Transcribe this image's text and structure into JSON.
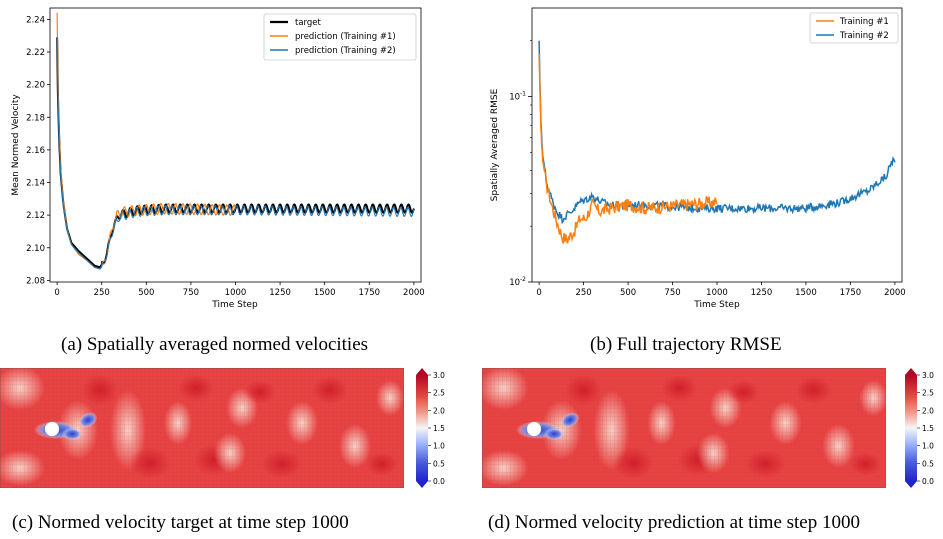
{
  "captions": {
    "a": "(a) Spatially averaged normed velocities",
    "b": "(b) Full trajectory RMSE",
    "c": "(c) Normed velocity target at time step 1000",
    "d": "(d) Normed velocity prediction at time step 1000"
  },
  "chart_data": [
    {
      "type": "line",
      "xlabel": "Time Step",
      "ylabel": "Mean Normed Velocity",
      "xlim": [
        -40,
        2040
      ],
      "ylim": [
        2.079,
        2.247
      ],
      "xticks": [
        "0",
        "250",
        "500",
        "750",
        "1000",
        "1250",
        "1500",
        "1750",
        "2000"
      ],
      "yticks": [
        "2.08",
        "2.10",
        "2.12",
        "2.14",
        "2.16",
        "2.18",
        "2.20",
        "2.22",
        "2.24"
      ],
      "legend_position": "top-right",
      "series": [
        {
          "name": "target",
          "color": "#000000",
          "x_range": [
            0,
            2000
          ],
          "anchors": [
            [
              0,
              2.229
            ],
            [
              5,
              2.19
            ],
            [
              12,
              2.165
            ],
            [
              20,
              2.145
            ],
            [
              35,
              2.127
            ],
            [
              55,
              2.112
            ],
            [
              80,
              2.103
            ],
            [
              120,
              2.098
            ],
            [
              170,
              2.093
            ],
            [
              210,
              2.089
            ],
            [
              240,
              2.088
            ],
            [
              260,
              2.091
            ],
            [
              280,
              2.097
            ],
            [
              300,
              2.107
            ],
            [
              320,
              2.114
            ],
            [
              345,
              2.12
            ],
            [
              380,
              2.121
            ],
            [
              450,
              2.123
            ],
            [
              600,
              2.124
            ],
            [
              1000,
              2.124
            ],
            [
              2000,
              2.124
            ]
          ],
          "osc_amp": 0.0025,
          "osc_period": 40
        },
        {
          "name": "prediction (Training #1)",
          "color": "#ff7f0e",
          "x_range": [
            0,
            1000
          ],
          "anchors": [
            [
              0,
              2.244
            ],
            [
              5,
              2.2
            ],
            [
              12,
              2.17
            ],
            [
              20,
              2.148
            ],
            [
              35,
              2.128
            ],
            [
              55,
              2.112
            ],
            [
              80,
              2.102
            ],
            [
              120,
              2.096
            ],
            [
              170,
              2.092
            ],
            [
              210,
              2.088
            ],
            [
              240,
              2.087
            ],
            [
              260,
              2.09
            ],
            [
              280,
              2.097
            ],
            [
              300,
              2.108
            ],
            [
              320,
              2.116
            ],
            [
              345,
              2.121
            ],
            [
              380,
              2.122
            ],
            [
              450,
              2.123
            ],
            [
              600,
              2.124
            ],
            [
              1000,
              2.123
            ]
          ],
          "osc_amp": 0.0032,
          "osc_period": 41
        },
        {
          "name": "prediction (Training #2)",
          "color": "#1f77b4",
          "x_range": [
            0,
            2000
          ],
          "anchors": [
            [
              0,
              2.229
            ],
            [
              5,
              2.19
            ],
            [
              12,
              2.164
            ],
            [
              20,
              2.144
            ],
            [
              35,
              2.126
            ],
            [
              55,
              2.111
            ],
            [
              80,
              2.102
            ],
            [
              120,
              2.097
            ],
            [
              170,
              2.092
            ],
            [
              210,
              2.088
            ],
            [
              240,
              2.087
            ],
            [
              260,
              2.09
            ],
            [
              280,
              2.096
            ],
            [
              300,
              2.106
            ],
            [
              320,
              2.113
            ],
            [
              345,
              2.119
            ],
            [
              380,
              2.12
            ],
            [
              450,
              2.122
            ],
            [
              600,
              2.123
            ],
            [
              1000,
              2.123
            ],
            [
              2000,
              2.122
            ]
          ],
          "osc_amp": 0.0028,
          "osc_period": 40
        }
      ]
    },
    {
      "type": "line",
      "xlabel": "Time Step",
      "ylabel": "Spatially Averaged RMSE",
      "yscale": "log",
      "xlim": [
        -40,
        2040
      ],
      "ylim": [
        0.01,
        0.3
      ],
      "xticks": [
        "0",
        "250",
        "500",
        "750",
        "1000",
        "1250",
        "1500",
        "1750",
        "2000"
      ],
      "yticks": [
        "10^-2",
        "10^-1"
      ],
      "legend_position": "top-right",
      "series": [
        {
          "name": "Training #1",
          "color": "#ff7f0e",
          "x_range": [
            0,
            1000
          ],
          "anchors": [
            [
              0,
              0.17
            ],
            [
              3,
              0.13
            ],
            [
              7,
              0.08
            ],
            [
              12,
              0.06
            ],
            [
              20,
              0.045
            ],
            [
              40,
              0.034
            ],
            [
              70,
              0.026
            ],
            [
              100,
              0.021
            ],
            [
              130,
              0.0175
            ],
            [
              160,
              0.017
            ],
            [
              200,
              0.019
            ],
            [
              230,
              0.022
            ],
            [
              260,
              0.022
            ],
            [
              300,
              0.026
            ],
            [
              340,
              0.024
            ],
            [
              400,
              0.025
            ],
            [
              500,
              0.026
            ],
            [
              600,
              0.025
            ],
            [
              800,
              0.026
            ],
            [
              1000,
              0.027
            ]
          ],
          "noise": 0.08
        },
        {
          "name": "Training #2",
          "color": "#1f77b4",
          "x_range": [
            0,
            2000
          ],
          "anchors": [
            [
              0,
              0.2
            ],
            [
              3,
              0.14
            ],
            [
              7,
              0.09
            ],
            [
              12,
              0.065
            ],
            [
              20,
              0.048
            ],
            [
              40,
              0.035
            ],
            [
              70,
              0.028
            ],
            [
              100,
              0.024
            ],
            [
              130,
              0.022
            ],
            [
              180,
              0.024
            ],
            [
              230,
              0.027
            ],
            [
              300,
              0.029
            ],
            [
              350,
              0.027
            ],
            [
              400,
              0.026
            ],
            [
              600,
              0.026
            ],
            [
              900,
              0.025
            ],
            [
              1200,
              0.025
            ],
            [
              1500,
              0.025
            ],
            [
              1700,
              0.027
            ],
            [
              1850,
              0.031
            ],
            [
              1950,
              0.037
            ],
            [
              1990,
              0.046
            ],
            [
              2000,
              0.043
            ]
          ],
          "noise": 0.05
        }
      ]
    }
  ],
  "colorbar": {
    "ticks": [
      "3.0",
      "2.5",
      "2.0",
      "1.5",
      "1.0",
      "0.5",
      "0.0"
    ],
    "colors": [
      "#b40426",
      "#ee6a5a",
      "#f5a58a",
      "#f7f7f7",
      "#7b9ff9",
      "#3b4cc0",
      "#2222cc"
    ]
  },
  "colors": {
    "field": "#e84343",
    "field_light": "#f4b0a6",
    "wake_blue": "#3b4cc0"
  }
}
